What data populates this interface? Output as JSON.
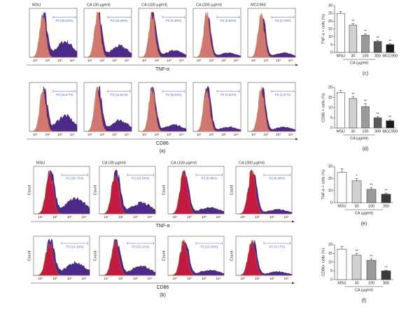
{
  "panels": {
    "a": {
      "label": "(a)",
      "rows": [
        {
          "axis_label": "TNF-α",
          "plots": [
            {
              "title": "MSU",
              "gate": "P2 (25.04%)"
            },
            {
              "title": "CA (30 μg/ml)",
              "gate": "P2 (16.86%)"
            },
            {
              "title": "CA (100 μg/ml)",
              "gate": "P2 (9.49%)"
            },
            {
              "title": "CA (300 μg/ml)",
              "gate": "P2 (5.82%)"
            },
            {
              "title": "MCC950",
              "gate": "P2 (5.79%)"
            }
          ]
        },
        {
          "axis_label": "CD86",
          "plots": [
            {
              "gate": "P2 (16.47%)"
            },
            {
              "gate": "P2 (11.61%)"
            },
            {
              "gate": "P2 (8.20%)"
            },
            {
              "gate": "P2 (4.51%)"
            },
            {
              "gate": "P2 (3.27%)"
            }
          ]
        }
      ]
    },
    "b": {
      "label": "(b)",
      "y_label": "Count",
      "rows": [
        {
          "axis_label": "TNF-α",
          "plots": [
            {
              "title": "MSU",
              "gate": "P2 (28.73%)"
            },
            {
              "title": "CA (30 μg/ml)",
              "gate": "P2 (16.54%)"
            },
            {
              "title": "CA (100 μg/ml)",
              "gate": "P2 (9.48%)"
            },
            {
              "title": "CA (300 μg/ml)",
              "gate": "P2 (6.48%)"
            }
          ]
        },
        {
          "axis_label": "CD86",
          "plots": [
            {
              "gate": "P2 (19.18%)"
            },
            {
              "gate": "P2 (15.12%)"
            },
            {
              "gate": "P2 (10.28%)"
            },
            {
              "gate": "P2 (4.17%)"
            }
          ]
        }
      ]
    }
  },
  "histogram_x_ticks": [
    "10¹",
    "10²",
    "10³",
    "10⁴"
  ],
  "chart_data": [
    {
      "type": "bar",
      "panel_label": "(c)",
      "ylabel": "TNF-α + cells (%)",
      "xlabel": "CA (μg/ml)",
      "categories": [
        "MSU",
        "30",
        "100",
        "300",
        "MCC950"
      ],
      "values": [
        25,
        17.5,
        11,
        7,
        5
      ],
      "errors": [
        1.2,
        1,
        1,
        0.8,
        0.7
      ],
      "significance": [
        null,
        "**",
        "**",
        "**",
        "**"
      ],
      "colors": [
        "#ffffff",
        "#d0d0d0",
        "#9a9a9a",
        "#5a5a5a",
        "#1a1a1a"
      ],
      "ylim": [
        0,
        30
      ],
      "yticks": [
        0,
        5,
        10,
        15,
        20,
        25,
        30
      ]
    },
    {
      "type": "bar",
      "panel_label": "(d)",
      "ylabel": "CD86 + cells (%)",
      "xlabel": "CA (μg/ml)",
      "categories": [
        "MSU",
        "30",
        "100",
        "300",
        "MCC950"
      ],
      "values": [
        17.5,
        14.5,
        10.5,
        5,
        3.5
      ],
      "errors": [
        1,
        1,
        1.5,
        0.6,
        0.5
      ],
      "significance": [
        null,
        "**",
        "**",
        "**",
        "**"
      ],
      "colors": [
        "#ffffff",
        "#d0d0d0",
        "#9a9a9a",
        "#5a5a5a",
        "#1a1a1a"
      ],
      "ylim": [
        0,
        20
      ],
      "yticks": [
        0,
        5,
        10,
        15,
        20
      ]
    },
    {
      "type": "bar",
      "panel_label": "(e)",
      "ylabel": "TNF-α + cells (%)",
      "xlabel": "CA (μg/ml)",
      "categories": [
        "MSU",
        "30",
        "100",
        "300"
      ],
      "values": [
        25,
        18,
        11,
        7
      ],
      "errors": [
        3,
        2,
        1.5,
        1
      ],
      "significance": [
        null,
        "*",
        "**",
        "**"
      ],
      "colors": [
        "#ffffff",
        "#d0d0d0",
        "#9a9a9a",
        "#3a3a3a"
      ],
      "ylim": [
        0,
        30
      ],
      "yticks": [
        0,
        10,
        20,
        30
      ]
    },
    {
      "type": "bar",
      "panel_label": "(f)",
      "ylabel": "CD86+ cells (%)",
      "xlabel": "CA (μg/ml)",
      "categories": [
        "MSU",
        "30",
        "100",
        "300"
      ],
      "values": [
        17.5,
        14,
        11,
        5
      ],
      "errors": [
        1.5,
        1,
        1,
        0.5
      ],
      "significance": [
        null,
        "**",
        "**",
        "**"
      ],
      "colors": [
        "#ffffff",
        "#d0d0d0",
        "#9a9a9a",
        "#3a3a3a"
      ],
      "ylim": [
        0,
        20
      ],
      "yticks": [
        0,
        5,
        10,
        15,
        20
      ]
    }
  ]
}
